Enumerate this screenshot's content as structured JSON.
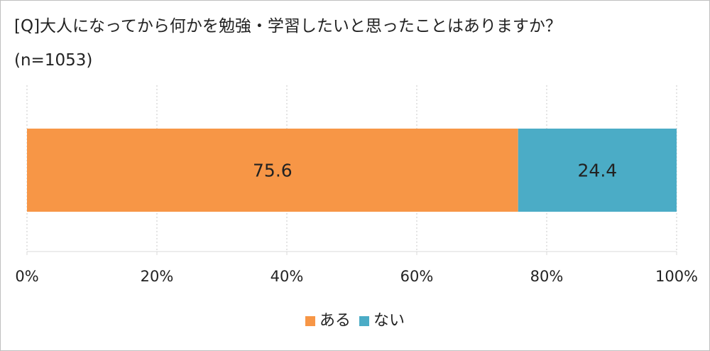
{
  "chart_data": {
    "type": "bar",
    "orientation": "horizontal",
    "stacked": true,
    "title": "[Q]大人になってから何かを勉強・学習したいと思ったことはありますか？",
    "subtitle": "(n=1053)",
    "categories": [
      ""
    ],
    "series": [
      {
        "name": "ある",
        "values": [
          75.6
        ],
        "color": "#F79646"
      },
      {
        "name": "ない",
        "values": [
          24.4
        ],
        "color": "#4BACC6"
      }
    ],
    "xlim": [
      0,
      100
    ],
    "xticks": [
      0,
      20,
      40,
      60,
      80,
      100
    ],
    "xtick_labels": [
      "0%",
      "20%",
      "40%",
      "60%",
      "80%",
      "100%"
    ],
    "data_labels": [
      "75.6",
      "24.4"
    ],
    "grid": "vertical-dotted",
    "legend_position": "bottom"
  }
}
